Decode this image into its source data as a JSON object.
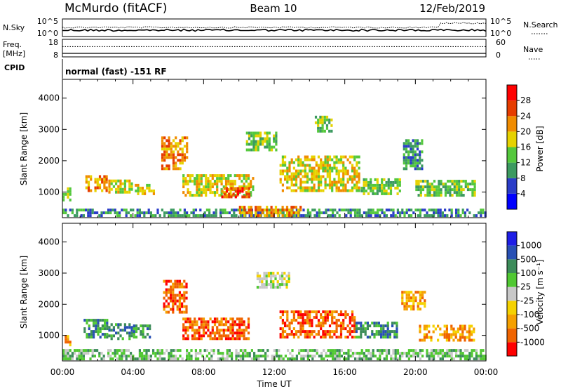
{
  "header": {
    "station": "McMurdo (fitACF)",
    "beam": "Beam 10",
    "date": "12/Feb/2019"
  },
  "chart_data": [
    {
      "type": "line",
      "panel": "noise",
      "left_label": "N.Sky",
      "right_label": "N.Search",
      "left_ticks": [
        "10^5",
        "10^0"
      ],
      "right_ticks": [
        "10^5",
        "10^0"
      ],
      "scale": "log",
      "right_series_step_x": 21.3
    },
    {
      "type": "line",
      "panel": "frequency",
      "left_label": "Freq.",
      "left_unit": "[MHz]",
      "right_label": "Nave",
      "left_ticks": [
        "18",
        "8"
      ],
      "right_ticks": [
        "60",
        "0"
      ],
      "freq_value": 10,
      "nave_value": 35
    },
    {
      "type": "table",
      "panel": "cpid",
      "label": "CPID",
      "value": "normal (fast) -151 RF"
    },
    {
      "type": "heatmap",
      "panel": "power",
      "ylabel": "Slant Range [km]",
      "ylim": [
        180,
        4600
      ],
      "xlim": [
        0,
        24
      ],
      "yticks": [
        "4000",
        "3000",
        "2000",
        "1000"
      ],
      "ytick_values": [
        4000,
        3000,
        2000,
        1000
      ],
      "colorbar_label": "Power [dB]",
      "colorbar_ticks": [
        "28",
        "24",
        "20",
        "16",
        "12",
        "8",
        "4"
      ],
      "colorbar_colors": [
        "#0000ff",
        "#2a3cc8",
        "#3c9a60",
        "#54c83c",
        "#e6d200",
        "#f08c00",
        "#e63c00",
        "#ff0000"
      ],
      "patches": [
        {
          "t0": 0.0,
          "t1": 0.5,
          "r0": 700,
          "r1": 1100,
          "v": 3
        },
        {
          "t0": 1.3,
          "t1": 2.5,
          "r0": 1000,
          "r1": 1500,
          "v": 5
        },
        {
          "t0": 2.6,
          "t1": 3.9,
          "r0": 950,
          "r1": 1350,
          "v": 4
        },
        {
          "t0": 4.1,
          "t1": 5.2,
          "r0": 900,
          "r1": 1200,
          "v": 4
        },
        {
          "t0": 5.6,
          "t1": 7.0,
          "r0": 1700,
          "r1": 2700,
          "v": 5
        },
        {
          "t0": 6.8,
          "t1": 10.8,
          "r0": 850,
          "r1": 1500,
          "v": 4
        },
        {
          "t0": 9.0,
          "t1": 10.6,
          "r0": 800,
          "r1": 1100,
          "v": 6
        },
        {
          "t0": 10.4,
          "t1": 12.1,
          "r0": 2300,
          "r1": 2900,
          "v": 3
        },
        {
          "t0": 12.3,
          "t1": 16.8,
          "r0": 1000,
          "r1": 2100,
          "v": 4
        },
        {
          "t0": 14.3,
          "t1": 15.3,
          "r0": 2900,
          "r1": 3400,
          "v": 3
        },
        {
          "t0": 16.9,
          "t1": 19.1,
          "r0": 900,
          "r1": 1400,
          "v": 3
        },
        {
          "t0": 19.3,
          "t1": 20.4,
          "r0": 1700,
          "r1": 2600,
          "v": 2
        },
        {
          "t0": 20.0,
          "t1": 23.4,
          "r0": 850,
          "r1": 1300,
          "v": 3
        },
        {
          "t0": 0.0,
          "t1": 24.0,
          "r0": 200,
          "r1": 450,
          "v": 2
        },
        {
          "t0": 10.0,
          "t1": 13.5,
          "r0": 200,
          "r1": 500,
          "v": 5
        }
      ]
    },
    {
      "type": "heatmap",
      "panel": "velocity",
      "ylabel": "Slant Range [km]",
      "ylim": [
        180,
        4600
      ],
      "xlim": [
        0,
        24
      ],
      "yticks": [
        "4000",
        "3000",
        "2000",
        "1000"
      ],
      "ytick_values": [
        4000,
        3000,
        2000,
        1000
      ],
      "xticks": [
        "00:00",
        "04:00",
        "08:00",
        "12:00",
        "16:00",
        "20:00",
        "00:00"
      ],
      "xtick_values": [
        0,
        4,
        8,
        12,
        16,
        20,
        24
      ],
      "xlabel": "Time UT",
      "colorbar_label": "Velocity [m s⁻¹]",
      "colorbar_ticks": [
        "1000",
        "500",
        "100",
        "25",
        "-25",
        "-100",
        "-500",
        "-1000"
      ],
      "colorbar_colors": [
        "#ff0000",
        "#f06400",
        "#f5a000",
        "#f5d200",
        "#c8c8c8",
        "#50c832",
        "#3c8c5a",
        "#2850b4",
        "#1e1ee6"
      ],
      "patches": [
        {
          "t0": 0.0,
          "t1": 0.5,
          "r0": 650,
          "r1": 1000,
          "v": 2
        },
        {
          "t0": 1.2,
          "t1": 2.5,
          "r0": 900,
          "r1": 1500,
          "v": 6
        },
        {
          "t0": 2.6,
          "t1": 4.0,
          "r0": 850,
          "r1": 1350,
          "v": 6
        },
        {
          "t0": 4.0,
          "t1": 5.0,
          "r0": 900,
          "r1": 1300,
          "v": 6
        },
        {
          "t0": 5.7,
          "t1": 7.0,
          "r0": 1700,
          "r1": 2700,
          "v": 1
        },
        {
          "t0": 6.8,
          "t1": 10.5,
          "r0": 850,
          "r1": 1500,
          "v": 1
        },
        {
          "t0": 12.3,
          "t1": 16.6,
          "r0": 900,
          "r1": 1800,
          "v": 1
        },
        {
          "t0": 16.6,
          "t1": 19.0,
          "r0": 900,
          "r1": 1400,
          "v": 6
        },
        {
          "t0": 19.2,
          "t1": 20.5,
          "r0": 1800,
          "r1": 2400,
          "v": 2
        },
        {
          "t0": 20.2,
          "t1": 23.3,
          "r0": 800,
          "r1": 1300,
          "v": 2
        },
        {
          "t0": 0.0,
          "t1": 24.0,
          "r0": 200,
          "r1": 550,
          "v": 5
        },
        {
          "t0": 11.0,
          "t1": 12.8,
          "r0": 2500,
          "r1": 3000,
          "v": 4
        }
      ]
    }
  ]
}
